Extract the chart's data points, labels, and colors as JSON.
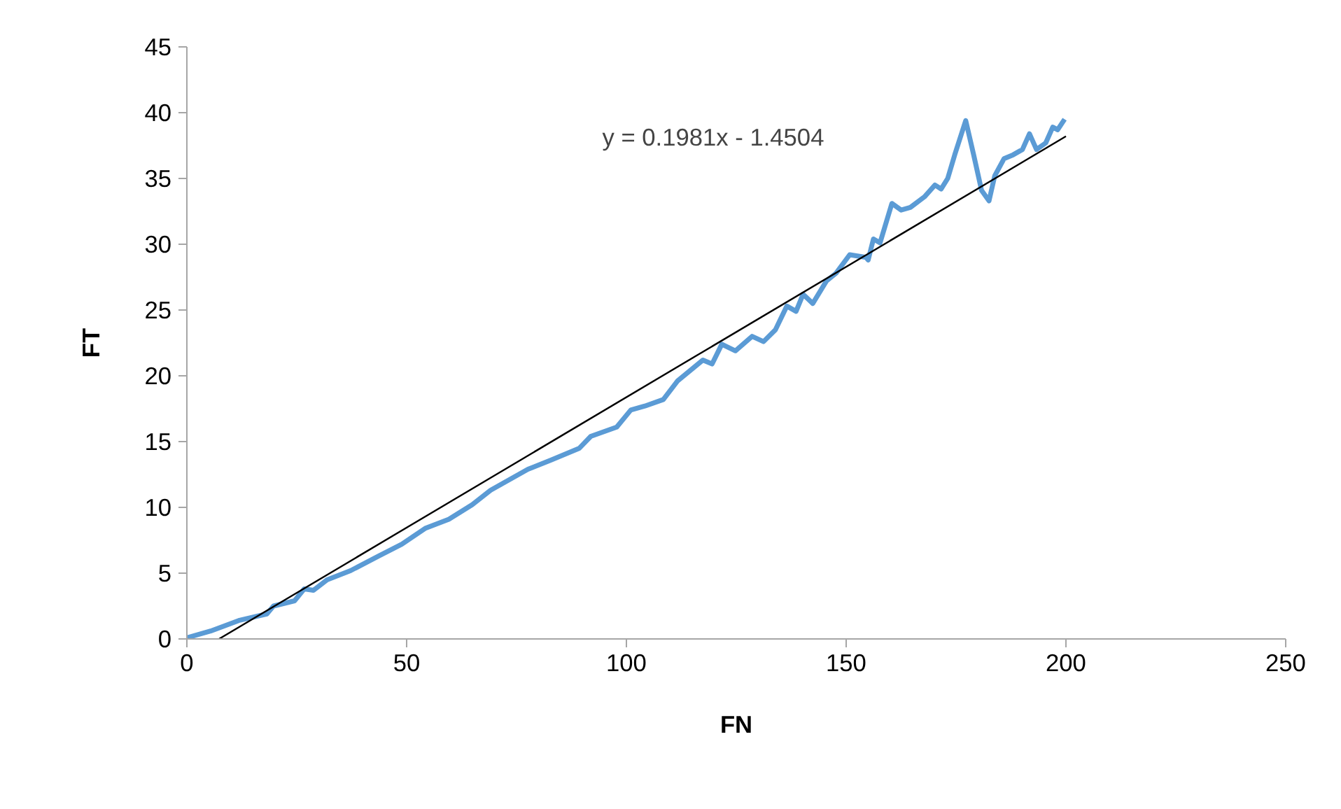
{
  "chart_data": {
    "type": "line",
    "xlabel": "FN",
    "ylabel": "FT",
    "xlim": [
      0,
      250
    ],
    "xticks": [
      0,
      50,
      100,
      150,
      200,
      250
    ],
    "ylim": [
      0,
      45
    ],
    "yticks": [
      0,
      5,
      10,
      15,
      20,
      25,
      30,
      35,
      40,
      45
    ],
    "grid": false,
    "marker": "none",
    "line_style": "solid",
    "annotations": [
      "y = 0.1981x - 1.4504"
    ],
    "series": [
      {
        "color": "#5b9bd5",
        "x": [
          0.1,
          5.4,
          11.8,
          18.2,
          19.7,
          24.5,
          26.7,
          28.8,
          31.9,
          37.3,
          43.6,
          48.9,
          54.2,
          59.6,
          64.9,
          69.1,
          77.6,
          82.9,
          89.3,
          91.9,
          97.8,
          101.0,
          104.2,
          108.4,
          111.6,
          117.4,
          119.5,
          121.7,
          124.8,
          128.6,
          131.2,
          133.9,
          136.5,
          138.6,
          140.2,
          142.4,
          145.5,
          147.7,
          150.8,
          154.5,
          155.0,
          156.2,
          157.7,
          160.4,
          162.5,
          164.6,
          167.8,
          170.2,
          171.6,
          173.1,
          174.7,
          177.2,
          179.0,
          180.8,
          182.5,
          183.8,
          185.9,
          188.0,
          190.1,
          191.7,
          193.3,
          195.4,
          197.0,
          198.1,
          199.7
        ],
        "values": [
          0.1,
          0.6,
          1.4,
          1.9,
          2.5,
          2.9,
          3.8,
          3.7,
          4.5,
          5.2,
          6.3,
          7.2,
          8.4,
          9.1,
          10.2,
          11.3,
          12.9,
          13.6,
          14.5,
          15.4,
          16.1,
          17.4,
          17.7,
          18.2,
          19.6,
          21.2,
          20.9,
          22.4,
          21.9,
          23.0,
          22.6,
          23.5,
          25.3,
          24.9,
          26.2,
          25.5,
          27.2,
          27.8,
          29.2,
          29.0,
          28.8,
          30.4,
          30.1,
          33.1,
          32.6,
          32.8,
          33.6,
          34.5,
          34.2,
          35.0,
          36.8,
          39.4,
          36.8,
          34.1,
          33.3,
          35.2,
          36.5,
          36.8,
          37.2,
          38.4,
          37.2,
          37.7,
          38.9,
          38.7,
          39.5
        ]
      },
      {
        "color": "#000000",
        "x": [
          7.32,
          200
        ],
        "values": [
          0,
          38.2
        ]
      }
    ]
  }
}
